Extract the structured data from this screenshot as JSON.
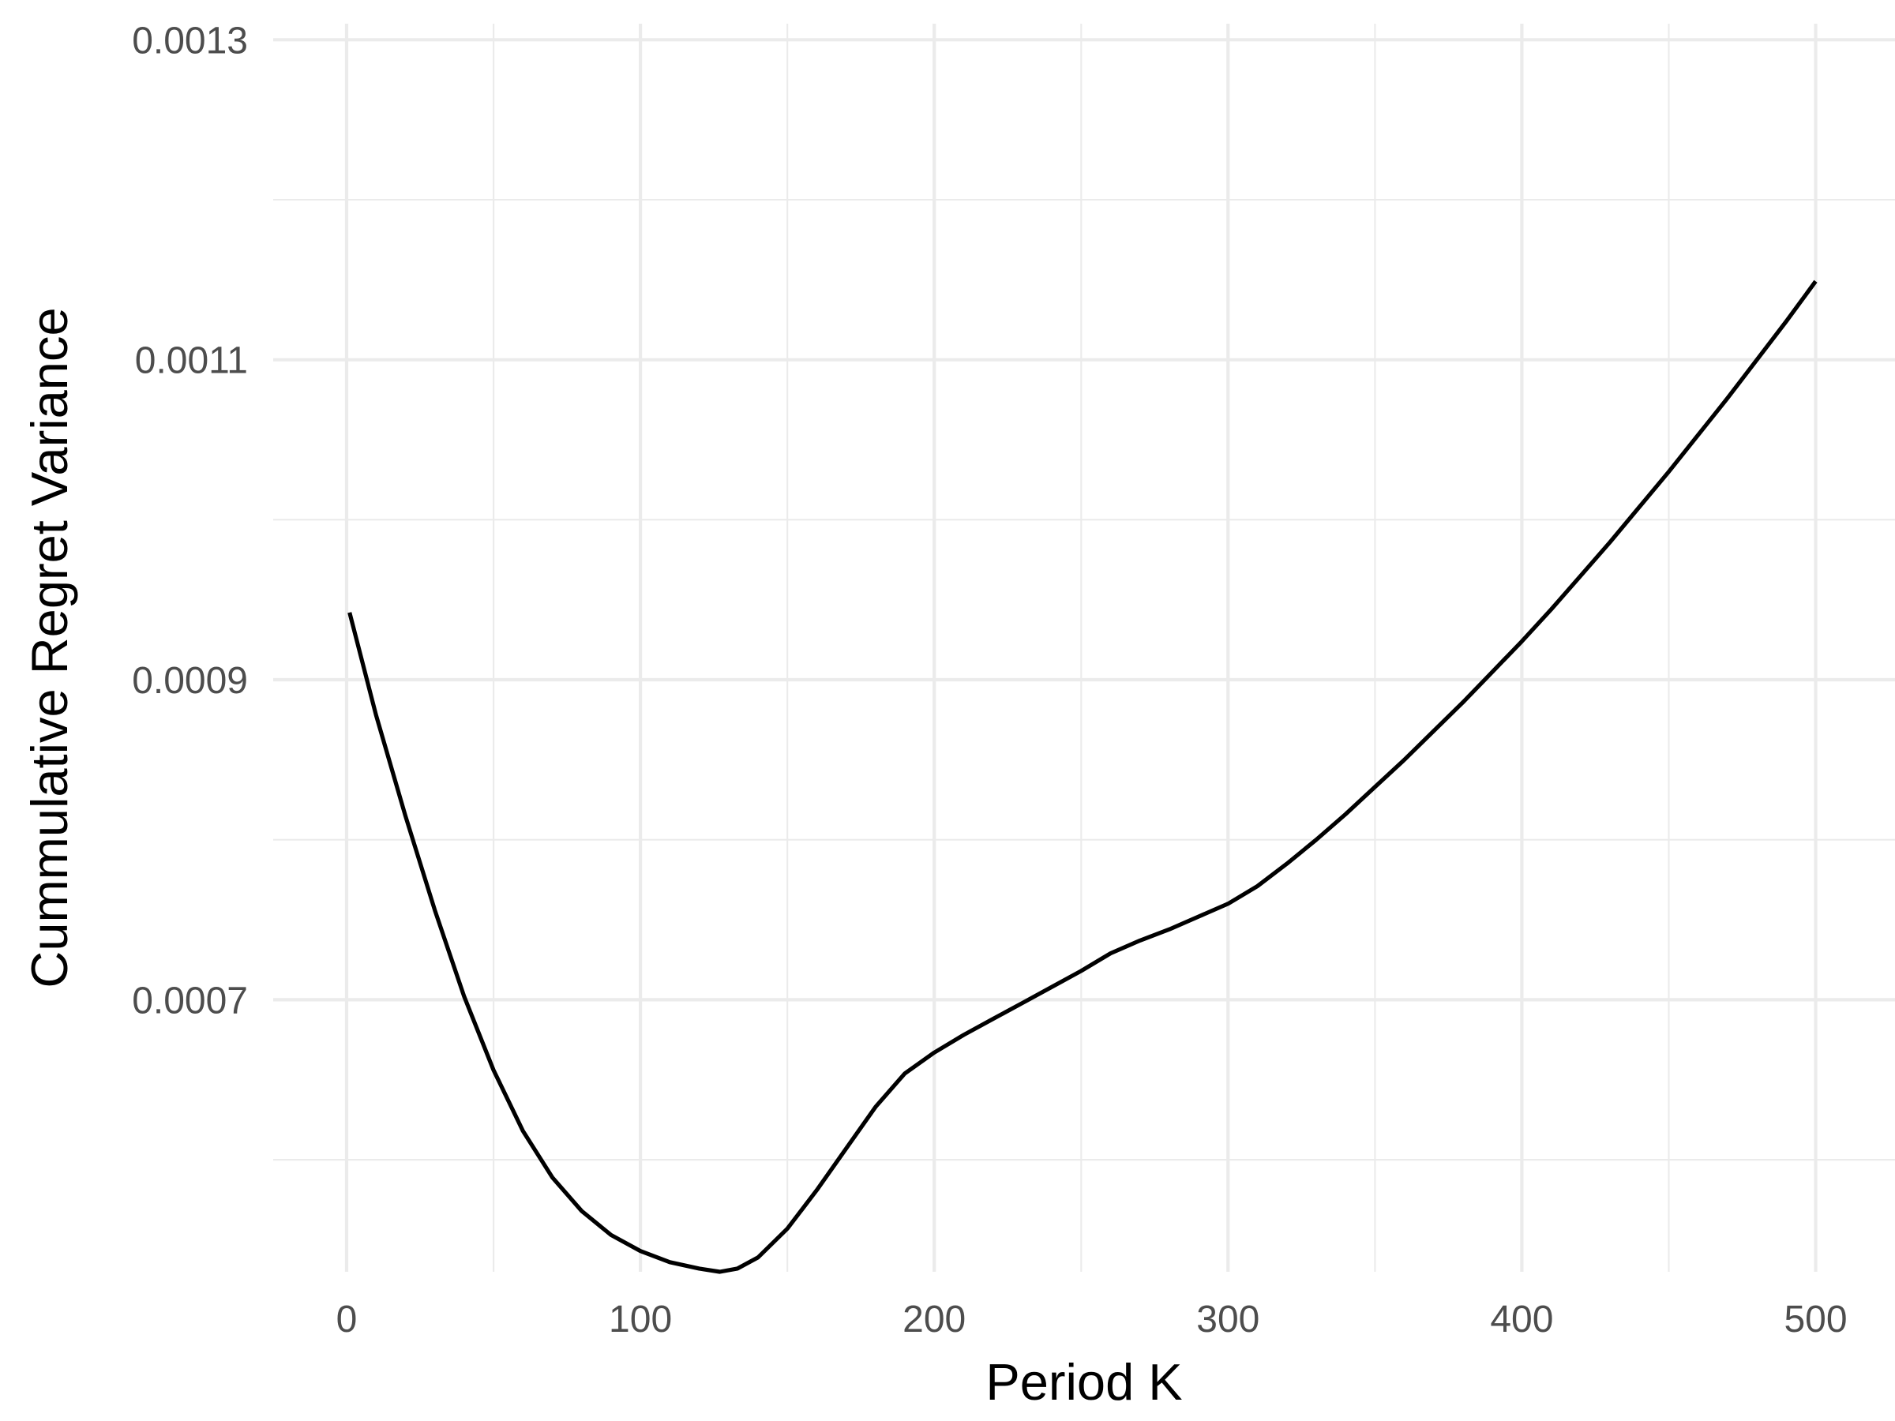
{
  "chart_data": {
    "type": "line",
    "title": "",
    "xlabel": "Period K",
    "ylabel": "Cummulative Regret Variance",
    "xlim": [
      -25,
      527
    ],
    "ylim": [
      0.00053,
      0.00131
    ],
    "x_ticks": [
      {
        "value": 0,
        "label": "0"
      },
      {
        "value": 100,
        "label": "100"
      },
      {
        "value": 200,
        "label": "200"
      },
      {
        "value": 300,
        "label": "300"
      },
      {
        "value": 400,
        "label": "400"
      },
      {
        "value": 500,
        "label": "500"
      }
    ],
    "x_minor_ticks": [
      50,
      150,
      250,
      350,
      450
    ],
    "y_ticks": [
      {
        "value": 0.0007,
        "label": "0.0007"
      },
      {
        "value": 0.0009,
        "label": "0.0009"
      },
      {
        "value": 0.0011,
        "label": "0.0011"
      },
      {
        "value": 0.0013,
        "label": "0.0013"
      }
    ],
    "y_minor_ticks": [
      0.0006,
      0.0008,
      0.001,
      0.0012
    ],
    "grid": true,
    "legend": "none",
    "series": [
      {
        "color": "#000000",
        "x": [
          1,
          10,
          20,
          30,
          40,
          50,
          60,
          70,
          80,
          90,
          100,
          110,
          120,
          127,
          133,
          140,
          150,
          160,
          170,
          180,
          190,
          200,
          210,
          220,
          230,
          240,
          250,
          260,
          270,
          280,
          290,
          300,
          310,
          320,
          330,
          340,
          350,
          360,
          370,
          380,
          390,
          400,
          410,
          420,
          430,
          440,
          450,
          460,
          470,
          480,
          490,
          500
        ],
        "y": [
          0.000942,
          0.000878,
          0.000815,
          0.000756,
          0.000702,
          0.000656,
          0.000618,
          0.000589,
          0.000568,
          0.000553,
          0.000543,
          0.000536,
          0.000532,
          0.00053,
          0.000532,
          0.000539,
          0.000557,
          0.000581,
          0.000607,
          0.000633,
          0.000654,
          0.000667,
          0.000678,
          0.000688,
          0.000698,
          0.000708,
          0.000718,
          0.000729,
          0.000737,
          0.000744,
          0.000752,
          0.00076,
          0.000771,
          0.000785,
          0.0008,
          0.000816,
          0.000833,
          0.00085,
          0.000868,
          0.000886,
          0.000905,
          0.000924,
          0.000944,
          0.000965,
          0.000986,
          0.001008,
          0.00103,
          0.001053,
          0.001076,
          0.0011,
          0.001124,
          0.001149
        ]
      }
    ]
  }
}
